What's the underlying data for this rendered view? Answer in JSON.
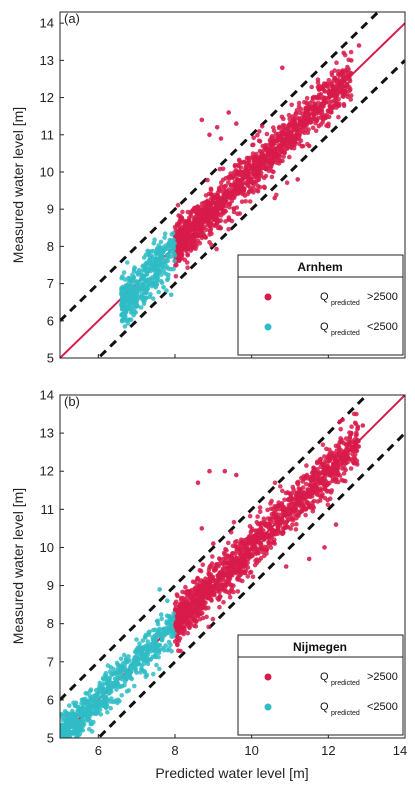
{
  "chart_data": [
    {
      "type": "scatter",
      "panel_label": "(a)",
      "xlabel": "",
      "ylabel": "Measured water level [m]",
      "xlim": [
        5,
        14
      ],
      "ylim": [
        5,
        14.3
      ],
      "xticks": [],
      "yticks": [
        5,
        6,
        7,
        8,
        9,
        10,
        11,
        12,
        13,
        14
      ],
      "legend": {
        "title": "Arnhem",
        "location": "lower-right",
        "entries": [
          {
            "symbol": "Q",
            "sub": "predicted",
            "text": ">2500",
            "color": "#d81b4a"
          },
          {
            "symbol": "Q",
            "sub": "predicted",
            "text": "<2500",
            "color": "#2fbcc6"
          }
        ]
      },
      "lines": [
        {
          "style": "solid",
          "color": "#d81b4a",
          "slope": 1,
          "intercept": 0
        },
        {
          "style": "dashed",
          "color": "#111111",
          "slope": 1,
          "intercept": 1
        },
        {
          "style": "dashed",
          "color": "#111111",
          "slope": 1,
          "intercept": -1
        }
      ],
      "series": [
        {
          "name": "high",
          "color": "#d81b4a",
          "x_range": [
            8.0,
            12.6
          ],
          "offset_sd": 0.3
        },
        {
          "name": "low",
          "color": "#2fbcc6",
          "x_range": [
            6.6,
            8.0
          ],
          "offset_sd": 0.3
        }
      ],
      "outliers": [
        [
          8.7,
          11.4
        ],
        [
          8.9,
          11.0
        ],
        [
          9.1,
          11.2
        ],
        [
          9.4,
          11.6
        ],
        [
          9.6,
          11.3
        ],
        [
          9.2,
          10.9
        ],
        [
          11.6,
          12.0
        ],
        [
          12.4,
          13.2
        ],
        [
          12.6,
          13.0
        ],
        [
          12.8,
          13.4
        ],
        [
          10.8,
          12.8
        ],
        [
          11.3,
          11.2
        ],
        [
          11.7,
          11.4
        ],
        [
          11.5,
          10.7
        ],
        [
          10.6,
          9.3
        ],
        [
          11.2,
          9.8
        ],
        [
          7.7,
          6.9
        ],
        [
          7.9,
          6.7
        ],
        [
          7.5,
          6.9
        ],
        [
          7.8,
          7.1
        ]
      ]
    },
    {
      "type": "scatter",
      "panel_label": "(b)",
      "xlabel": "Predicted water level [m]",
      "ylabel": "Measured water level [m]",
      "xlim": [
        5,
        14
      ],
      "ylim": [
        5,
        14
      ],
      "xticks": [
        6,
        8,
        10,
        12,
        14
      ],
      "yticks": [
        5,
        6,
        7,
        8,
        9,
        10,
        11,
        12,
        13,
        14
      ],
      "legend": {
        "title": "Nijmegen",
        "location": "lower-right",
        "entries": [
          {
            "symbol": "Q",
            "sub": "predicted",
            "text": ">2500",
            "color": "#d81b4a"
          },
          {
            "symbol": "Q",
            "sub": "predicted",
            "text": "<2500",
            "color": "#2fbcc6"
          }
        ]
      },
      "lines": [
        {
          "style": "solid",
          "color": "#d81b4a",
          "slope": 1,
          "intercept": 0
        },
        {
          "style": "dashed",
          "color": "#111111",
          "slope": 1,
          "intercept": 1
        },
        {
          "style": "dashed",
          "color": "#111111",
          "slope": 1,
          "intercept": -1
        }
      ],
      "series": [
        {
          "name": "high",
          "color": "#d81b4a",
          "x_range": [
            8.0,
            12.8
          ],
          "offset_sd": 0.3
        },
        {
          "name": "low",
          "color": "#2fbcc6",
          "x_range": [
            5.0,
            8.0
          ],
          "offset_sd": 0.25
        }
      ],
      "outliers": [
        [
          8.6,
          11.7
        ],
        [
          8.9,
          12.0
        ],
        [
          9.3,
          12.0
        ],
        [
          9.6,
          11.9
        ],
        [
          8.7,
          10.5
        ],
        [
          9.0,
          10.1
        ],
        [
          12.3,
          13.3
        ],
        [
          12.6,
          13.0
        ],
        [
          12.9,
          13.2
        ],
        [
          11.9,
          10.0
        ],
        [
          12.2,
          10.6
        ],
        [
          11.5,
          9.7
        ],
        [
          10.9,
          9.5
        ],
        [
          7.8,
          8.6
        ],
        [
          7.6,
          8.9
        ]
      ]
    }
  ]
}
